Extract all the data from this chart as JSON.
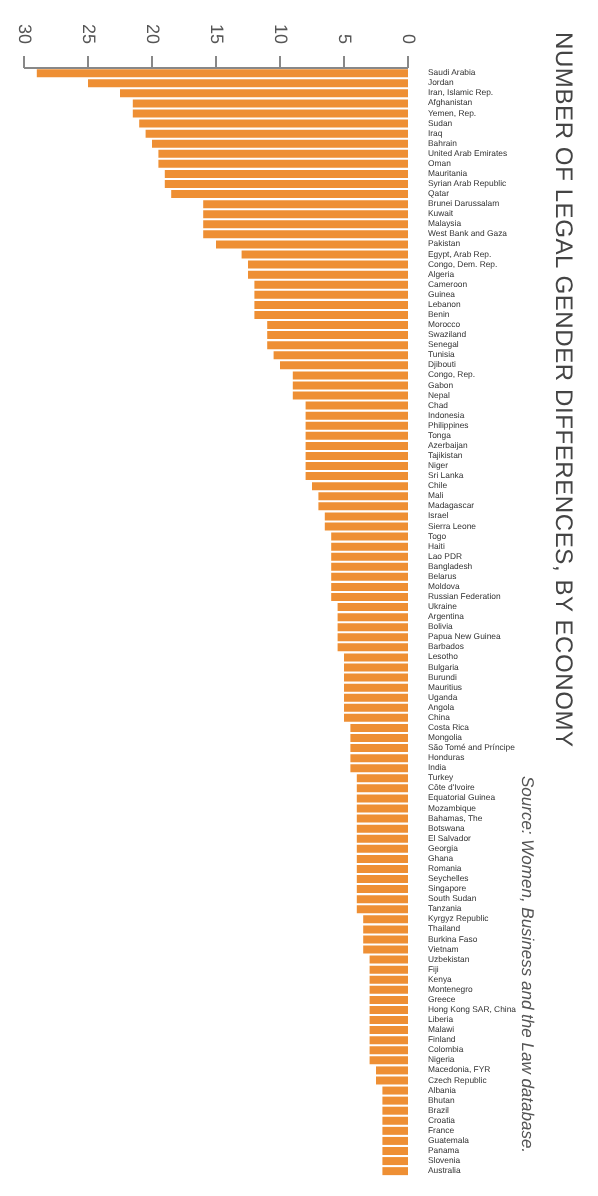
{
  "chart_data": {
    "type": "bar",
    "orientation": "horizontal",
    "title": "NUMBER OF LEGAL GENDER DIFFERENCES, BY ECONOMY",
    "annotations": [
      "Source: Women, Business and the Law database."
    ],
    "categories": [
      "Saudi Arabia",
      "Jordan",
      "Iran, Islamic Rep.",
      "Afghanistan",
      "Yemen, Rep.",
      "Sudan",
      "Iraq",
      "Bahrain",
      "United Arab Emirates",
      "Oman",
      "Mauritania",
      "Syrian Arab Republic",
      "Qatar",
      "Brunei Darussalam",
      "Kuwait",
      "Malaysia",
      "West Bank and Gaza",
      "Pakistan",
      "Egypt, Arab Rep.",
      "Congo, Dem. Rep.",
      "Algeria",
      "Cameroon",
      "Guinea",
      "Lebanon",
      "Benin",
      "Morocco",
      "Swaziland",
      "Senegal",
      "Tunisia",
      "Djibouti",
      "Congo, Rep.",
      "Gabon",
      "Nepal",
      "Chad",
      "Indonesia",
      "Philippines",
      "Tonga",
      "Azerbaijan",
      "Tajikistan",
      "Niger",
      "Sri Lanka",
      "Chile",
      "Mali",
      "Madagascar",
      "Israel",
      "Sierra Leone",
      "Togo",
      "Haiti",
      "Lao PDR",
      "Bangladesh",
      "Belarus",
      "Moldova",
      "Russian Federation",
      "Ukraine",
      "Argentina",
      "Bolivia",
      "Papua New Guinea",
      "Barbados",
      "Lesotho",
      "Bulgaria",
      "Burundi",
      "Mauritius",
      "Uganda",
      "Angola",
      "China",
      "Costa Rica",
      "Mongolia",
      "São Tomé and Príncipe",
      "Honduras",
      "India",
      "Turkey",
      "Côte d'Ivoire",
      "Equatorial Guinea",
      "Mozambique",
      "Bahamas, The",
      "Botswana",
      "El Salvador",
      "Georgia",
      "Ghana",
      "Romania",
      "Seychelles",
      "Singapore",
      "South Sudan",
      "Tanzania",
      "Kyrgyz Republic",
      "Thailand",
      "Burkina Faso",
      "Vietnam",
      "Uzbekistan",
      "Fiji",
      "Kenya",
      "Montenegro",
      "Greece",
      "Hong Kong SAR, China",
      "Liberia",
      "Malawi",
      "Finland",
      "Colombia",
      "Nigeria",
      "Macedonia, FYR",
      "Czech Republic",
      "Albania",
      "Bhutan",
      "Brazil",
      "Croatia",
      "France",
      "Guatemala",
      "Panama",
      "Slovenia",
      "Australia"
    ],
    "values": [
      29,
      25,
      22.5,
      21.5,
      21.5,
      21,
      20.5,
      20,
      19.5,
      19.5,
      19,
      19,
      18.5,
      16,
      16,
      16,
      16,
      15,
      13,
      12.5,
      12.5,
      12,
      12,
      12,
      12,
      11,
      11,
      11,
      10.5,
      10,
      9,
      9,
      9,
      8,
      8,
      8,
      8,
      8,
      8,
      8,
      8,
      7.5,
      7,
      7,
      6.5,
      6.5,
      6,
      6,
      6,
      6,
      6,
      6,
      6,
      5.5,
      5.5,
      5.5,
      5.5,
      5.5,
      5,
      5,
      5,
      5,
      5,
      5,
      5,
      4.5,
      4.5,
      4.5,
      4.5,
      4.5,
      4,
      4,
      4,
      4,
      4,
      4,
      4,
      4,
      4,
      4,
      4,
      4,
      4,
      4,
      3.5,
      3.5,
      3.5,
      3.5,
      3,
      3,
      3,
      3,
      3,
      3,
      3,
      3,
      3,
      3,
      3,
      2.5,
      2.5,
      2,
      2,
      2,
      2,
      2,
      2,
      2,
      2,
      2
    ],
    "color": "#ee8f34",
    "xlim": [
      30,
      0
    ],
    "xticks": [
      0,
      5,
      10,
      15,
      20,
      25,
      30
    ],
    "grid": false
  }
}
